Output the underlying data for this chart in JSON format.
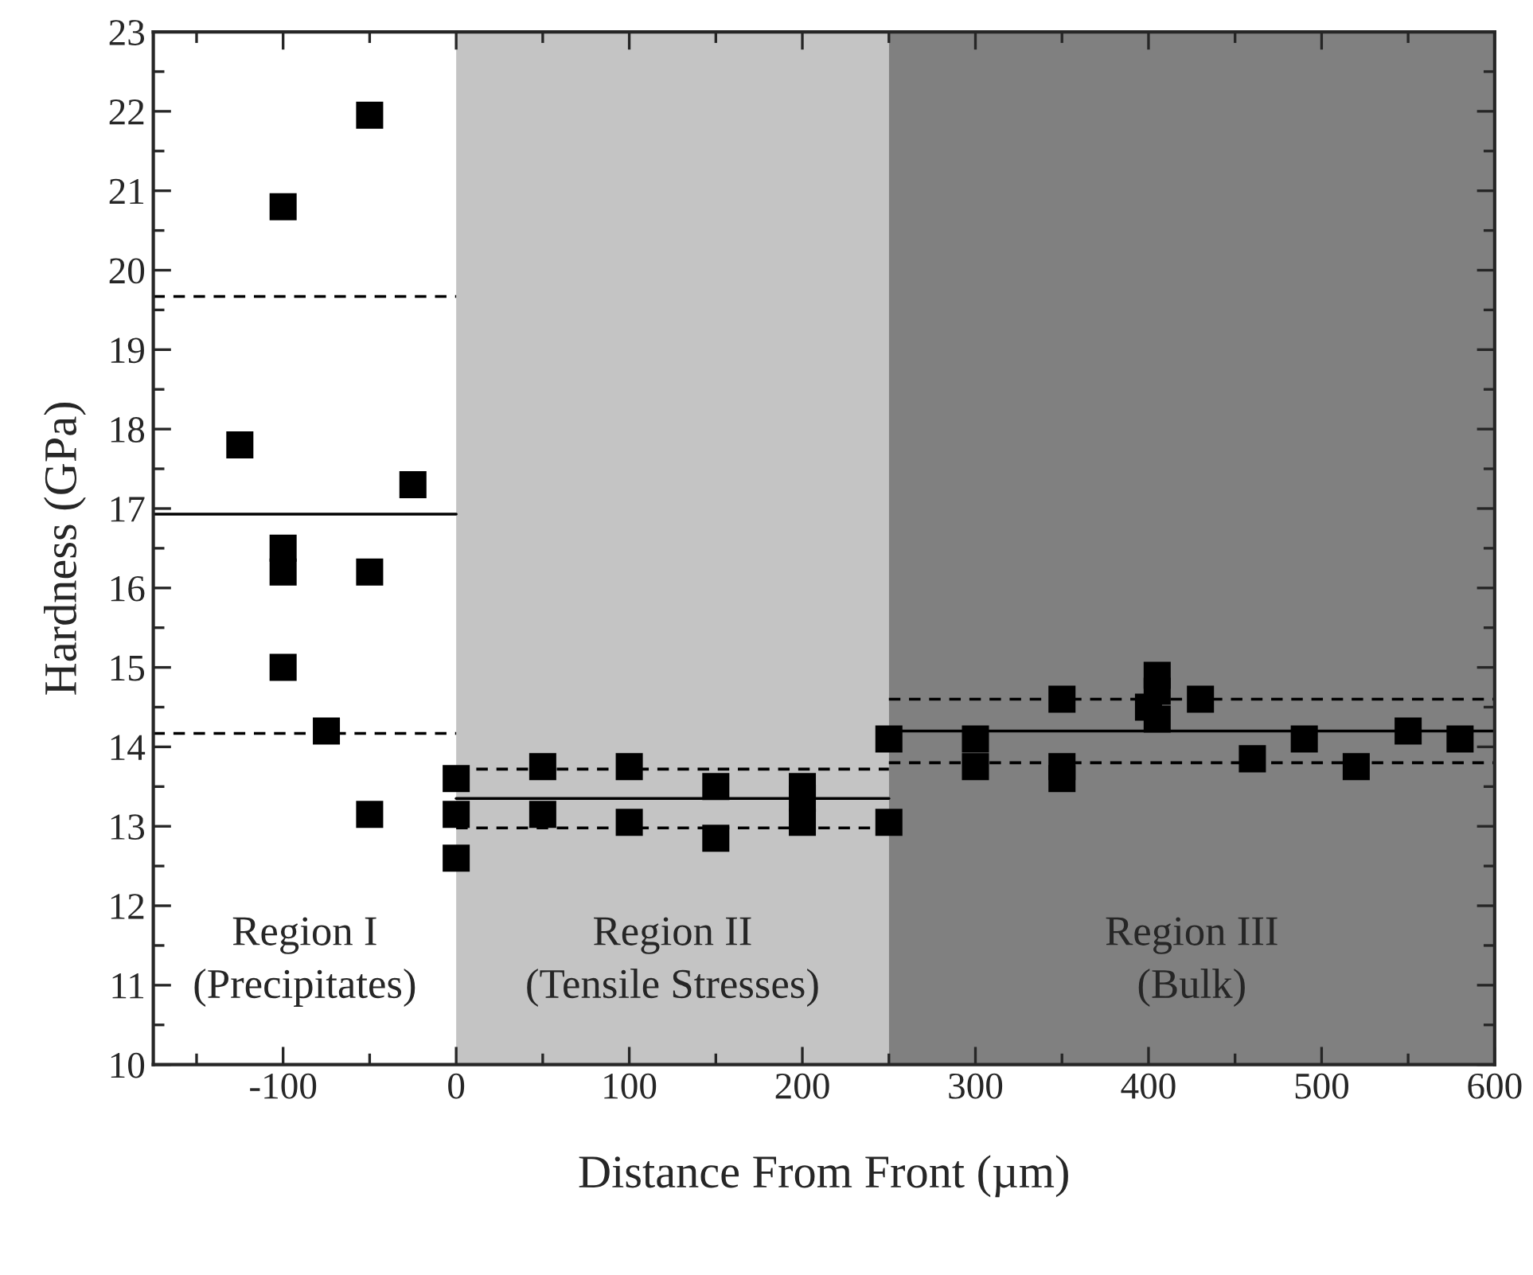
{
  "chart_data": {
    "type": "scatter",
    "xlabel": "Distance From Front (µm)",
    "ylabel": "Hardness (GPa)",
    "xlim": [
      -175,
      600
    ],
    "ylim": [
      10,
      23
    ],
    "xticks": [
      -100,
      0,
      100,
      200,
      300,
      400,
      500,
      600
    ],
    "yticks": [
      10,
      11,
      12,
      13,
      14,
      15,
      16,
      17,
      18,
      19,
      20,
      21,
      22,
      23
    ],
    "marker": "square",
    "grid": false,
    "legend": false,
    "bands": [
      {
        "axis": "x",
        "from": 0,
        "to": 250,
        "label": "Region II\n(Tensile Stresses)",
        "color": "#c4c4c4"
      },
      {
        "axis": "x",
        "from": 250,
        "to": 600,
        "label": "Region III\n(Bulk)",
        "color": "#808080"
      }
    ],
    "annotations": [
      "Region I\n(Precipitates)"
    ],
    "series": [
      {
        "color": "#000000",
        "x": [
          -50,
          -100,
          -125,
          -25,
          -100,
          -100,
          -50,
          -100,
          -75,
          -50,
          0,
          0,
          0,
          50,
          50,
          100,
          100,
          150,
          150,
          200,
          200,
          200,
          250,
          250,
          300,
          300,
          350,
          350,
          350,
          400,
          405,
          405,
          405,
          430,
          460,
          490,
          520,
          550,
          580
        ],
        "values": [
          21.95,
          20.8,
          17.8,
          17.3,
          16.5,
          16.2,
          16.2,
          15.0,
          14.2,
          13.15,
          13.6,
          13.15,
          12.6,
          13.75,
          13.15,
          13.75,
          13.05,
          13.5,
          12.85,
          13.5,
          13.35,
          13.05,
          13.05,
          14.1,
          14.1,
          13.75,
          14.6,
          13.75,
          13.6,
          14.5,
          14.9,
          14.7,
          14.35,
          14.6,
          13.85,
          14.1,
          13.75,
          14.2,
          14.1
        ]
      },
      {
        "type": "line",
        "color": "#000000",
        "line_style": "solid",
        "marker": "none",
        "x": [
          -175,
          0
        ],
        "values": [
          16.93,
          16.93
        ]
      },
      {
        "type": "line",
        "color": "#000000",
        "line_style": "dashed",
        "marker": "none",
        "x": [
          -175,
          0
        ],
        "values": [
          19.67,
          19.67
        ]
      },
      {
        "type": "line",
        "color": "#000000",
        "line_style": "dashed",
        "marker": "none",
        "x": [
          -175,
          0
        ],
        "values": [
          14.17,
          14.17
        ]
      },
      {
        "type": "line",
        "color": "#000000",
        "line_style": "solid",
        "marker": "none",
        "x": [
          0,
          250
        ],
        "values": [
          13.35,
          13.35
        ]
      },
      {
        "type": "line",
        "color": "#000000",
        "line_style": "dashed",
        "marker": "none",
        "x": [
          0,
          250
        ],
        "values": [
          13.72,
          13.72
        ]
      },
      {
        "type": "line",
        "color": "#000000",
        "line_style": "dashed",
        "marker": "none",
        "x": [
          0,
          250
        ],
        "values": [
          12.98,
          12.98
        ]
      },
      {
        "type": "line",
        "color": "#000000",
        "line_style": "solid",
        "marker": "none",
        "x": [
          250,
          600
        ],
        "values": [
          14.2,
          14.2
        ]
      },
      {
        "type": "line",
        "color": "#000000",
        "line_style": "dashed",
        "marker": "none",
        "x": [
          250,
          600
        ],
        "values": [
          14.6,
          14.6
        ]
      },
      {
        "type": "line",
        "color": "#000000",
        "line_style": "dashed",
        "marker": "none",
        "x": [
          250,
          600
        ],
        "values": [
          13.8,
          13.8
        ]
      }
    ]
  }
}
